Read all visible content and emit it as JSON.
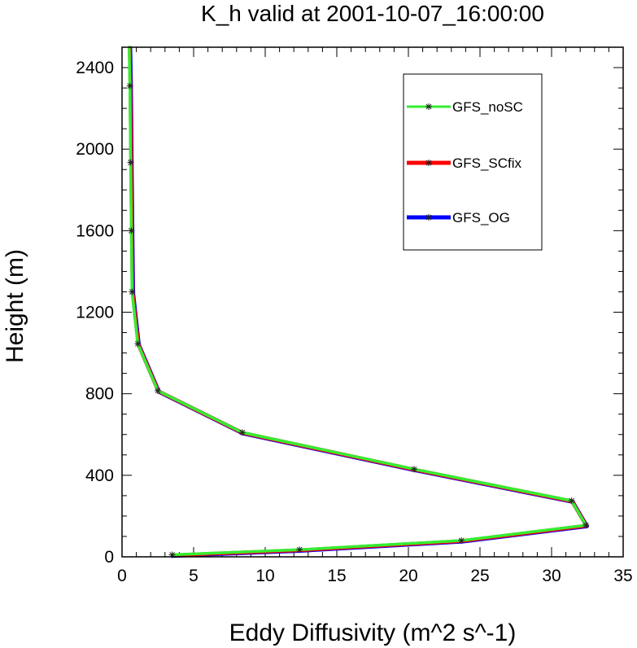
{
  "chart_data": {
    "type": "line",
    "title": "K_h valid at 2001-10-07_16:00:00",
    "xlabel": "Eddy Diffusivity (m^2 s^-1)",
    "ylabel": "Height (m)",
    "xlim": [
      0,
      35
    ],
    "ylim": [
      0,
      2500
    ],
    "xticks": [
      0,
      5,
      10,
      15,
      20,
      25,
      30,
      35
    ],
    "yticks": [
      0,
      400,
      800,
      1200,
      1600,
      2000,
      2400
    ],
    "xtick_labels": [
      "0",
      "5",
      "10",
      "15",
      "20",
      "25",
      "30",
      "35"
    ],
    "ytick_labels": [
      "0",
      "400",
      "800",
      "1200",
      "1600",
      "2000",
      "2400"
    ],
    "grid": false,
    "legend_position": "top-right",
    "series": [
      {
        "name": "GFS_OG",
        "color": "#0000ff",
        "marker": "asterisk",
        "x": [
          3.5,
          12.4,
          23.7,
          32.4,
          31.4,
          20.4,
          8.4,
          2.5,
          1.1,
          0.7,
          0.65,
          0.6,
          0.55,
          0.5
        ],
        "y": [
          10,
          35,
          80,
          155,
          275,
          430,
          610,
          815,
          1045,
          1300,
          1600,
          1935,
          2310,
          2500
        ]
      },
      {
        "name": "GFS_SCfix",
        "color": "#ff0000",
        "marker": "asterisk",
        "x": [
          3.5,
          12.4,
          23.7,
          32.4,
          31.4,
          20.4,
          8.4,
          2.5,
          1.1,
          0.7,
          0.65,
          0.6,
          0.55,
          0.5
        ],
        "y": [
          10,
          35,
          80,
          155,
          275,
          430,
          610,
          815,
          1045,
          1300,
          1600,
          1935,
          2310,
          2500
        ]
      },
      {
        "name": "GFS_noSC",
        "color": "#33ee33",
        "marker": "asterisk",
        "x": [
          3.5,
          12.4,
          23.7,
          32.4,
          31.4,
          20.4,
          8.4,
          2.5,
          1.1,
          0.7,
          0.65,
          0.6,
          0.55,
          0.5
        ],
        "y": [
          10,
          35,
          80,
          155,
          275,
          430,
          610,
          815,
          1045,
          1300,
          1600,
          1935,
          2310,
          2500
        ]
      }
    ],
    "legend_order": [
      "GFS_noSC",
      "GFS_SCfix",
      "GFS_OG"
    ]
  }
}
